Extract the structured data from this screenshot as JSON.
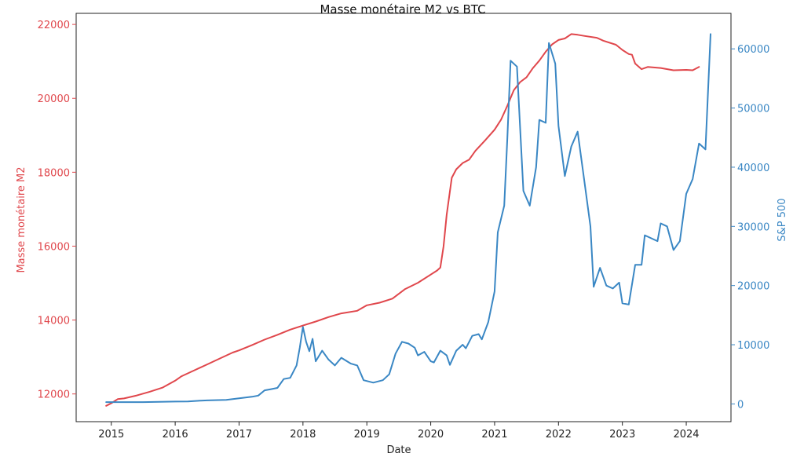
{
  "chart_data": {
    "type": "line",
    "title": "Masse monétaire M2 vs BTC",
    "xlabel": "Date",
    "ylabel_left": "Masse monétaire M2",
    "ylabel_right": "S&P 500",
    "x_ticks": [
      "2015",
      "2016",
      "2017",
      "2018",
      "2019",
      "2020",
      "2021",
      "2022",
      "2023",
      "2024"
    ],
    "xlim": [
      2014.45,
      2024.7
    ],
    "y_left_ticks": [
      "12000",
      "14000",
      "16000",
      "18000",
      "20000",
      "22000"
    ],
    "y_left_lim": [
      11250,
      22300
    ],
    "y_right_ticks": [
      "0",
      "10000",
      "20000",
      "30000",
      "40000",
      "50000",
      "60000"
    ],
    "y_right_lim": [
      -3000,
      66000
    ],
    "grid": false,
    "colors": {
      "left_series": "#e0474c",
      "right_series": "#3a87c4"
    },
    "series": [
      {
        "axis": "left",
        "color": "#e0474c",
        "points": [
          [
            2014.92,
            11680
          ],
          [
            2015.0,
            11750
          ],
          [
            2015.1,
            11860
          ],
          [
            2015.2,
            11880
          ],
          [
            2015.4,
            11960
          ],
          [
            2015.6,
            12060
          ],
          [
            2015.8,
            12170
          ],
          [
            2016.0,
            12360
          ],
          [
            2016.1,
            12480
          ],
          [
            2016.3,
            12640
          ],
          [
            2016.5,
            12800
          ],
          [
            2016.7,
            12960
          ],
          [
            2016.9,
            13120
          ],
          [
            2017.0,
            13180
          ],
          [
            2017.2,
            13320
          ],
          [
            2017.4,
            13470
          ],
          [
            2017.6,
            13600
          ],
          [
            2017.8,
            13740
          ],
          [
            2018.0,
            13850
          ],
          [
            2018.2,
            13960
          ],
          [
            2018.4,
            14080
          ],
          [
            2018.6,
            14180
          ],
          [
            2018.85,
            14250
          ],
          [
            2019.0,
            14400
          ],
          [
            2019.2,
            14470
          ],
          [
            2019.4,
            14580
          ],
          [
            2019.6,
            14840
          ],
          [
            2019.8,
            15010
          ],
          [
            2020.0,
            15230
          ],
          [
            2020.1,
            15340
          ],
          [
            2020.15,
            15420
          ],
          [
            2020.2,
            15990
          ],
          [
            2020.25,
            16850
          ],
          [
            2020.33,
            17850
          ],
          [
            2020.4,
            18080
          ],
          [
            2020.5,
            18250
          ],
          [
            2020.6,
            18340
          ],
          [
            2020.7,
            18580
          ],
          [
            2020.85,
            18860
          ],
          [
            2021.0,
            19150
          ],
          [
            2021.1,
            19420
          ],
          [
            2021.2,
            19800
          ],
          [
            2021.3,
            20220
          ],
          [
            2021.4,
            20440
          ],
          [
            2021.5,
            20570
          ],
          [
            2021.6,
            20820
          ],
          [
            2021.7,
            21020
          ],
          [
            2021.8,
            21260
          ],
          [
            2021.9,
            21460
          ],
          [
            2022.0,
            21580
          ],
          [
            2022.1,
            21620
          ],
          [
            2022.2,
            21740
          ],
          [
            2022.3,
            21720
          ],
          [
            2022.4,
            21690
          ],
          [
            2022.6,
            21640
          ],
          [
            2022.7,
            21560
          ],
          [
            2022.9,
            21450
          ],
          [
            2023.0,
            21310
          ],
          [
            2023.1,
            21200
          ],
          [
            2023.15,
            21180
          ],
          [
            2023.2,
            20940
          ],
          [
            2023.3,
            20790
          ],
          [
            2023.4,
            20850
          ],
          [
            2023.6,
            20820
          ],
          [
            2023.8,
            20760
          ],
          [
            2024.0,
            20770
          ],
          [
            2024.1,
            20760
          ],
          [
            2024.2,
            20850
          ]
        ]
      },
      {
        "axis": "right",
        "color": "#3a87c4",
        "points": [
          [
            2014.92,
            300
          ],
          [
            2015.0,
            300
          ],
          [
            2015.5,
            300
          ],
          [
            2016.0,
            400
          ],
          [
            2016.2,
            420
          ],
          [
            2016.4,
            550
          ],
          [
            2016.5,
            600
          ],
          [
            2016.8,
            680
          ],
          [
            2017.0,
            950
          ],
          [
            2017.2,
            1200
          ],
          [
            2017.3,
            1400
          ],
          [
            2017.4,
            2300
          ],
          [
            2017.5,
            2500
          ],
          [
            2017.6,
            2700
          ],
          [
            2017.7,
            4200
          ],
          [
            2017.8,
            4400
          ],
          [
            2017.9,
            6500
          ],
          [
            2017.95,
            9500
          ],
          [
            2018.0,
            13000
          ],
          [
            2018.05,
            10500
          ],
          [
            2018.1,
            8900
          ],
          [
            2018.15,
            11000
          ],
          [
            2018.2,
            7200
          ],
          [
            2018.3,
            9000
          ],
          [
            2018.4,
            7500
          ],
          [
            2018.5,
            6500
          ],
          [
            2018.6,
            7800
          ],
          [
            2018.75,
            6800
          ],
          [
            2018.85,
            6500
          ],
          [
            2018.95,
            4000
          ],
          [
            2019.1,
            3600
          ],
          [
            2019.25,
            4000
          ],
          [
            2019.35,
            5000
          ],
          [
            2019.45,
            8500
          ],
          [
            2019.55,
            10500
          ],
          [
            2019.65,
            10200
          ],
          [
            2019.75,
            9500
          ],
          [
            2019.8,
            8200
          ],
          [
            2019.9,
            8800
          ],
          [
            2020.0,
            7200
          ],
          [
            2020.05,
            7000
          ],
          [
            2020.15,
            9000
          ],
          [
            2020.25,
            8200
          ],
          [
            2020.3,
            6600
          ],
          [
            2020.4,
            9000
          ],
          [
            2020.5,
            10000
          ],
          [
            2020.55,
            9400
          ],
          [
            2020.65,
            11500
          ],
          [
            2020.75,
            11800
          ],
          [
            2020.8,
            10900
          ],
          [
            2020.9,
            13800
          ],
          [
            2021.0,
            19000
          ],
          [
            2021.05,
            29000
          ],
          [
            2021.15,
            33500
          ],
          [
            2021.2,
            45000
          ],
          [
            2021.25,
            58000
          ],
          [
            2021.35,
            57000
          ],
          [
            2021.45,
            36000
          ],
          [
            2021.55,
            33500
          ],
          [
            2021.65,
            40000
          ],
          [
            2021.7,
            48000
          ],
          [
            2021.8,
            47500
          ],
          [
            2021.85,
            61000
          ],
          [
            2021.95,
            57500
          ],
          [
            2022.0,
            47000
          ],
          [
            2022.1,
            38500
          ],
          [
            2022.2,
            43500
          ],
          [
            2022.3,
            46000
          ],
          [
            2022.4,
            38000
          ],
          [
            2022.5,
            30000
          ],
          [
            2022.55,
            19800
          ],
          [
            2022.65,
            23000
          ],
          [
            2022.75,
            20000
          ],
          [
            2022.85,
            19500
          ],
          [
            2022.95,
            20500
          ],
          [
            2023.0,
            17000
          ],
          [
            2023.1,
            16800
          ],
          [
            2023.2,
            23500
          ],
          [
            2023.3,
            23500
          ],
          [
            2023.35,
            28500
          ],
          [
            2023.45,
            28000
          ],
          [
            2023.55,
            27500
          ],
          [
            2023.6,
            30500
          ],
          [
            2023.7,
            30000
          ],
          [
            2023.8,
            26000
          ],
          [
            2023.9,
            27500
          ],
          [
            2024.0,
            35500
          ],
          [
            2024.1,
            38000
          ],
          [
            2024.2,
            44000
          ],
          [
            2024.3,
            43000
          ],
          [
            2024.38,
            62500
          ]
        ]
      }
    ]
  }
}
